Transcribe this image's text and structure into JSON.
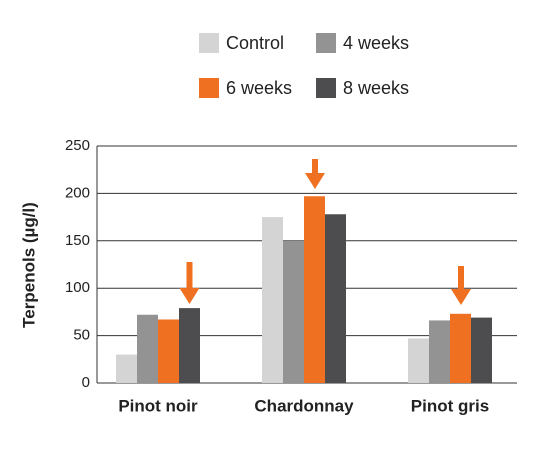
{
  "chart_data": {
    "type": "bar",
    "y_label": "Terpenols (µg/l)",
    "categories": [
      "Pinot noir",
      "Chardonnay",
      "Pinot gris"
    ],
    "series": [
      {
        "name": "Control",
        "color": "#d4d4d4",
        "values": [
          30,
          175,
          47
        ]
      },
      {
        "name": "4 weeks",
        "color": "#939393",
        "values": [
          72,
          150,
          66
        ]
      },
      {
        "name": "6 weeks",
        "color": "#f07022",
        "values": [
          67,
          197,
          73
        ]
      },
      {
        "name": "8 weeks",
        "color": "#4d4d4f",
        "values": [
          79,
          178,
          69
        ]
      }
    ],
    "ylim": [
      0,
      250
    ],
    "yticks": [
      0,
      50,
      100,
      150,
      200,
      250
    ],
    "grid": true
  }
}
